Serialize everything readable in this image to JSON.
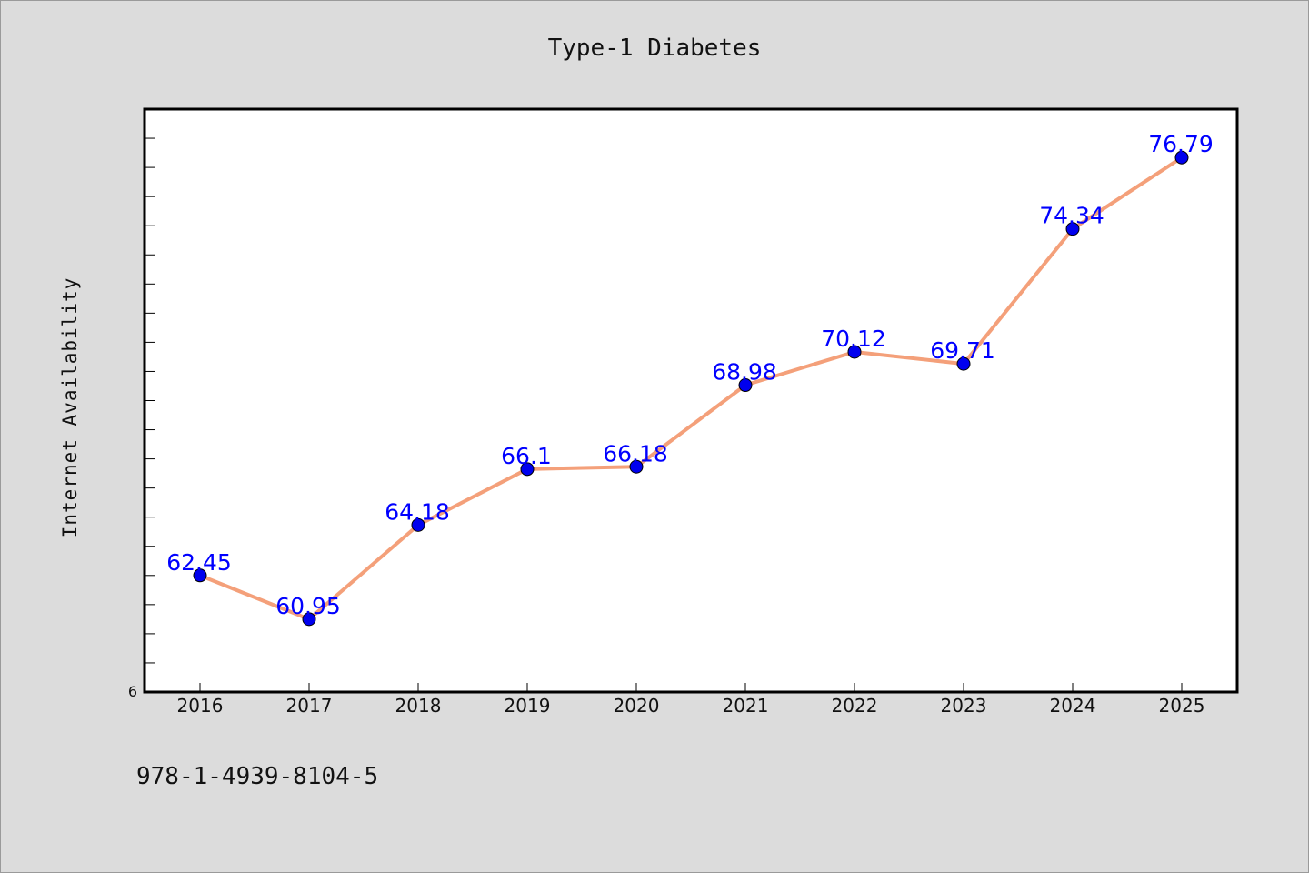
{
  "chart_data": {
    "type": "line",
    "title": "Type-1 Diabetes",
    "xlabel": "",
    "ylabel": "Internet Availability",
    "categories": [
      "2016",
      "2017",
      "2018",
      "2019",
      "2020",
      "2021",
      "2022",
      "2023",
      "2024",
      "2025"
    ],
    "series": [
      {
        "values": [
          62.45,
          60.95,
          64.18,
          66.1,
          66.18,
          68.98,
          70.12,
          69.71,
          74.34,
          76.79
        ]
      }
    ],
    "data_labels": [
      "62.45",
      "60.95",
      "64.18",
      "66.1",
      "66.18",
      "68.98",
      "70.12",
      "69.71",
      "74.34",
      "76.79"
    ],
    "ylim": [
      58.45,
      78.45
    ],
    "ytick_label": "6",
    "grid": false,
    "line_color": "#f4a07a",
    "marker_color": "#0000ee",
    "label_color": "#0000ff"
  },
  "footer": {
    "isbn": "978-1-4939-8104-5"
  }
}
